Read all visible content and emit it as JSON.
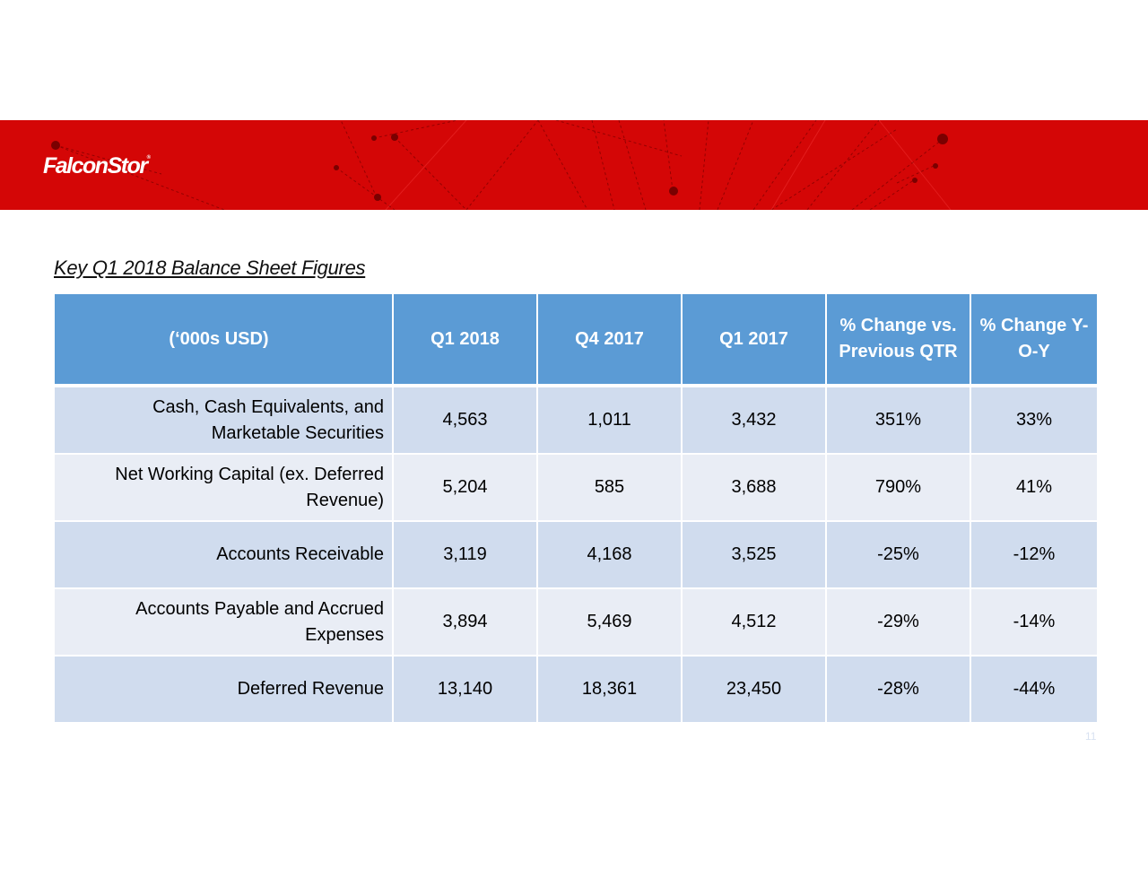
{
  "header": {
    "logo_text": "FalconStor",
    "logo_mark": "®",
    "banner_color": "#d40606"
  },
  "title": "Key Q1 2018 Balance Sheet Figures",
  "table": {
    "columns": [
      "(‘000s USD)",
      "Q1 2018",
      "Q4 2017",
      "Q1 2017",
      "% Change vs. Previous QTR",
      "% Change Y-O-Y"
    ],
    "rows": [
      {
        "label": "Cash, Cash Equivalents, and Marketable Securities",
        "q1_2018": "4,563",
        "q4_2017": "1,011",
        "q1_2017": "3,432",
        "chg_qtr": "351%",
        "chg_yoy": "33%"
      },
      {
        "label": "Net Working Capital (ex. Deferred Revenue)",
        "q1_2018": "5,204",
        "q4_2017": "585",
        "q1_2017": "3,688",
        "chg_qtr": "790%",
        "chg_yoy": "41%"
      },
      {
        "label": "Accounts Receivable",
        "q1_2018": "3,119",
        "q4_2017": "4,168",
        "q1_2017": "3,525",
        "chg_qtr": "-25%",
        "chg_yoy": "-12%"
      },
      {
        "label": "Accounts Payable and Accrued Expenses",
        "q1_2018": "3,894",
        "q4_2017": "5,469",
        "q1_2017": "4,512",
        "chg_qtr": "-29%",
        "chg_yoy": "-14%"
      },
      {
        "label": "Deferred Revenue",
        "q1_2018": "13,140",
        "q4_2017": "18,361",
        "q1_2017": "23,450",
        "chg_qtr": "-28%",
        "chg_yoy": "-44%"
      }
    ],
    "header_color": "#5b9bd5",
    "row_colors": [
      "#d0dcee",
      "#e9edf5"
    ]
  },
  "page_number": "11"
}
